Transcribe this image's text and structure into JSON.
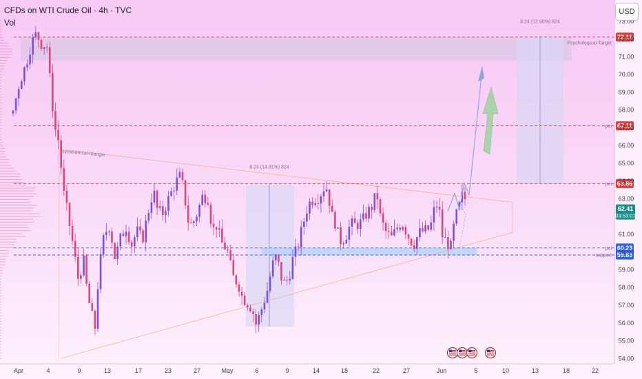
{
  "header": {
    "title": "CFDs on WTI Crude Oil · 4h · TVC",
    "volume_label": "Vol",
    "currency_button": "USD"
  },
  "chart_data": {
    "type": "candlestick",
    "symbol": "CFDs on WTI Crude Oil",
    "timeframe": "4h",
    "source": "TVC",
    "currency": "USD",
    "ylim": [
      53.7,
      74.2
    ],
    "y_ticks": [
      54,
      55,
      56,
      57,
      58,
      59,
      60,
      61,
      62,
      63,
      64,
      65,
      66,
      67,
      68,
      69,
      70,
      71,
      72,
      73
    ],
    "y_tick_labels": [
      "54.00",
      "55.00",
      "56.00",
      "57.00",
      "58.00",
      "59.00",
      "60.00",
      "61.00",
      "62.00",
      "63.00",
      "64.00",
      "65.00",
      "66.00",
      "67.00",
      "68.00",
      "69.00",
      "70.00",
      "71.00",
      "72.00",
      "73.00"
    ],
    "x_tick_labels": [
      "Apr",
      "4",
      "9",
      "13",
      "17",
      "23",
      "27",
      "May",
      "6",
      "9",
      "14",
      "18",
      "22",
      "27",
      "Jun",
      "5",
      "10",
      "13",
      "18",
      "22"
    ],
    "price_path": [
      [
        0,
        67.8
      ],
      [
        10,
        69.5
      ],
      [
        20,
        70.6
      ],
      [
        28,
        71.8
      ],
      [
        35,
        72.3
      ],
      [
        44,
        71.6
      ],
      [
        50,
        71.8
      ],
      [
        56,
        69.2
      ],
      [
        62,
        67.0
      ],
      [
        68,
        66.2
      ],
      [
        74,
        63.5
      ],
      [
        80,
        62.3
      ],
      [
        88,
        60.5
      ],
      [
        96,
        58.5
      ],
      [
        104,
        59.5
      ],
      [
        110,
        57.5
      ],
      [
        116,
        56.5
      ],
      [
        120,
        55.4
      ],
      [
        126,
        58.8
      ],
      [
        134,
        61.0
      ],
      [
        142,
        61.5
      ],
      [
        150,
        59.6
      ],
      [
        158,
        60.8
      ],
      [
        166,
        61.4
      ],
      [
        174,
        60.4
      ],
      [
        182,
        61.2
      ],
      [
        190,
        60.7
      ],
      [
        198,
        62.2
      ],
      [
        206,
        63.5
      ],
      [
        212,
        62.3
      ],
      [
        220,
        62.2
      ],
      [
        228,
        63.0
      ],
      [
        236,
        63.7
      ],
      [
        244,
        64.3
      ],
      [
        250,
        63.6
      ],
      [
        256,
        61.8
      ],
      [
        262,
        61.5
      ],
      [
        270,
        62.2
      ],
      [
        278,
        63.2
      ],
      [
        286,
        63.0
      ],
      [
        292,
        61.2
      ],
      [
        298,
        61.5
      ],
      [
        306,
        60.5
      ],
      [
        314,
        60.1
      ],
      [
        322,
        58.6
      ],
      [
        330,
        58.2
      ],
      [
        336,
        57.4
      ],
      [
        342,
        57.2
      ],
      [
        350,
        56.8
      ],
      [
        356,
        55.9
      ],
      [
        364,
        56.8
      ],
      [
        372,
        57.8
      ],
      [
        380,
        59.3
      ],
      [
        386,
        59.8
      ],
      [
        392,
        58.6
      ],
      [
        398,
        58.2
      ],
      [
        404,
        58.6
      ],
      [
        410,
        59.7
      ],
      [
        416,
        60.2
      ],
      [
        424,
        61.5
      ],
      [
        432,
        62.7
      ],
      [
        440,
        63.0
      ],
      [
        448,
        63.1
      ],
      [
        454,
        63.6
      ],
      [
        460,
        63.6
      ],
      [
        466,
        62.1
      ],
      [
        472,
        61.6
      ],
      [
        478,
        60.6
      ],
      [
        486,
        60.8
      ],
      [
        494,
        61.6
      ],
      [
        502,
        61.5
      ],
      [
        510,
        61.7
      ],
      [
        518,
        62.2
      ],
      [
        526,
        62.6
      ],
      [
        532,
        63.4
      ],
      [
        538,
        61.8
      ],
      [
        546,
        61.1
      ],
      [
        554,
        60.8
      ],
      [
        562,
        61.4
      ],
      [
        570,
        61.6
      ],
      [
        578,
        60.9
      ],
      [
        586,
        60.4
      ],
      [
        594,
        61.1
      ],
      [
        602,
        61.2
      ],
      [
        610,
        61.3
      ],
      [
        616,
        62.4
      ],
      [
        622,
        62.8
      ],
      [
        628,
        60.9
      ],
      [
        634,
        60.6
      ],
      [
        640,
        60.2
      ],
      [
        646,
        61.8
      ],
      [
        652,
        62.5
      ],
      [
        658,
        63.3
      ],
      [
        664,
        62.7
      ]
    ],
    "last_price": "62.41",
    "countdown": "03:53:01",
    "levels": [
      {
        "value": 72.11,
        "label": "72.11",
        "name": "Psychological Target",
        "color": "#e53935"
      },
      {
        "value": 67.11,
        "label": "67.11",
        "name": "poi",
        "color": "#e53935"
      },
      {
        "value": 63.86,
        "label": "63.86",
        "name": "poi",
        "color": "#e53935"
      },
      {
        "value": 60.23,
        "label": "60.23",
        "name": "poi",
        "color": "#2962ff"
      },
      {
        "value": 59.83,
        "label": "59.83",
        "name": "support",
        "color": "#2962ff"
      }
    ],
    "annotations": {
      "triangle_label": "symmetrical-triangle",
      "measure_mid": "8.24 (14.81%) 824",
      "measure_right": "8.24 (12.90%) 824",
      "psych_label": "Psychological-Target"
    },
    "colors": {
      "up": "#7d4fe0",
      "down": "#e0457a",
      "tag_red": "#e53935",
      "tag_teal": "#1a8f8a",
      "tag_blue": "#2962ff"
    },
    "events": {
      "flag_icon": "us-flag-icon",
      "count": 4
    }
  }
}
